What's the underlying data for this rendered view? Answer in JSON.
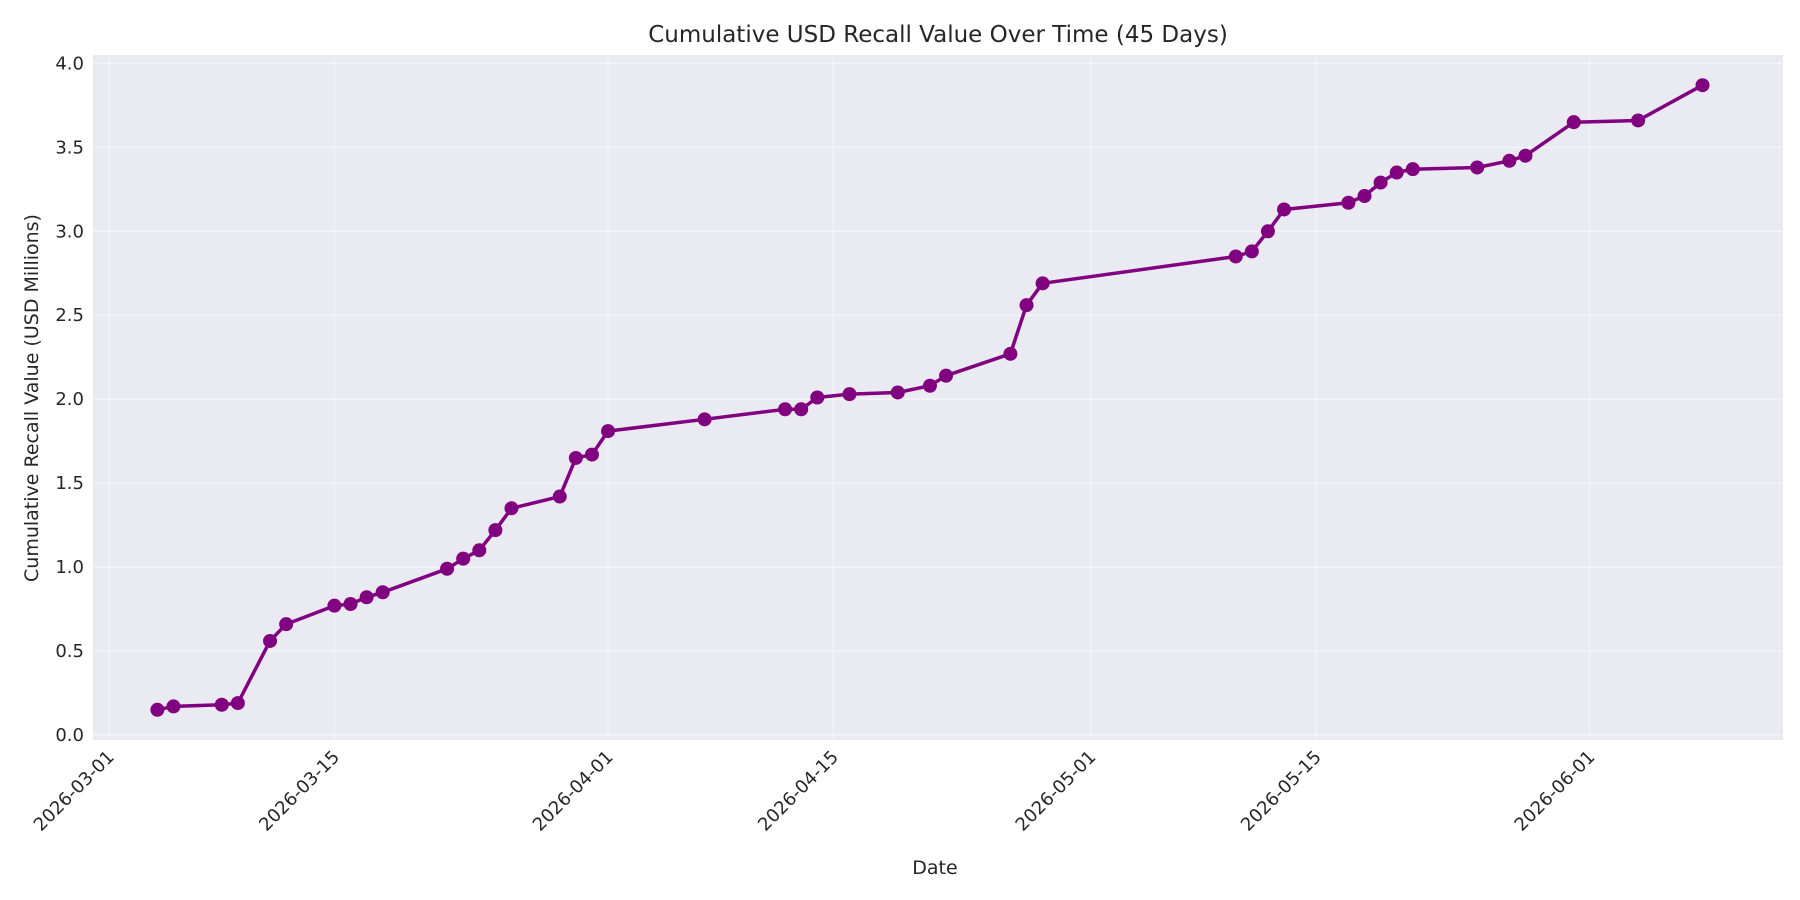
{
  "chart_data": {
    "type": "line",
    "title": "Cumulative USD Recall Value Over Time (45 Days)",
    "xlabel": "Date",
    "ylabel": "Cumulative Recall Value (USD Millions)",
    "x_is_date": true,
    "xlim": [
      "2026-02-28",
      "2026-06-13"
    ],
    "ylim": [
      -0.03,
      4.05
    ],
    "xticks": [
      "2026-03-01",
      "2026-03-15",
      "2026-04-01",
      "2026-04-15",
      "2026-05-01",
      "2026-05-15",
      "2026-06-01"
    ],
    "yticks": [
      0.0,
      0.5,
      1.0,
      1.5,
      2.0,
      2.5,
      3.0,
      3.5,
      4.0
    ],
    "ytick_labels": [
      "0.0",
      "0.5",
      "1.0",
      "1.5",
      "2.0",
      "2.5",
      "3.0",
      "3.5",
      "4.0"
    ],
    "grid": true,
    "background": "#eaeaf2",
    "color": "#800080",
    "series": [
      {
        "x": [
          "2026-03-04",
          "2026-03-05",
          "2026-03-08",
          "2026-03-09",
          "2026-03-11",
          "2026-03-12",
          "2026-03-15",
          "2026-03-16",
          "2026-03-17",
          "2026-03-18",
          "2026-03-22",
          "2026-03-23",
          "2026-03-24",
          "2026-03-25",
          "2026-03-26",
          "2026-03-29",
          "2026-03-30",
          "2026-03-31",
          "2026-04-01",
          "2026-04-07",
          "2026-04-12",
          "2026-04-13",
          "2026-04-14",
          "2026-04-16",
          "2026-04-19",
          "2026-04-21",
          "2026-04-22",
          "2026-04-26",
          "2026-04-27",
          "2026-04-28",
          "2026-05-10",
          "2026-05-11",
          "2026-05-12",
          "2026-05-13",
          "2026-05-17",
          "2026-05-18",
          "2026-05-19",
          "2026-05-20",
          "2026-05-21",
          "2026-05-25",
          "2026-05-27",
          "2026-05-28",
          "2026-05-31",
          "2026-06-04",
          "2026-06-08"
        ],
        "y": [
          0.15,
          0.17,
          0.18,
          0.19,
          0.56,
          0.66,
          0.77,
          0.78,
          0.82,
          0.85,
          0.99,
          1.05,
          1.1,
          1.22,
          1.35,
          1.42,
          1.65,
          1.67,
          1.81,
          1.88,
          1.94,
          1.94,
          2.01,
          2.03,
          2.04,
          2.08,
          2.14,
          2.27,
          2.56,
          2.69,
          2.85,
          2.88,
          3.0,
          3.13,
          3.17,
          3.21,
          3.29,
          3.35,
          3.37,
          3.38,
          3.42,
          3.45,
          3.65,
          3.66,
          3.87
        ]
      }
    ]
  }
}
